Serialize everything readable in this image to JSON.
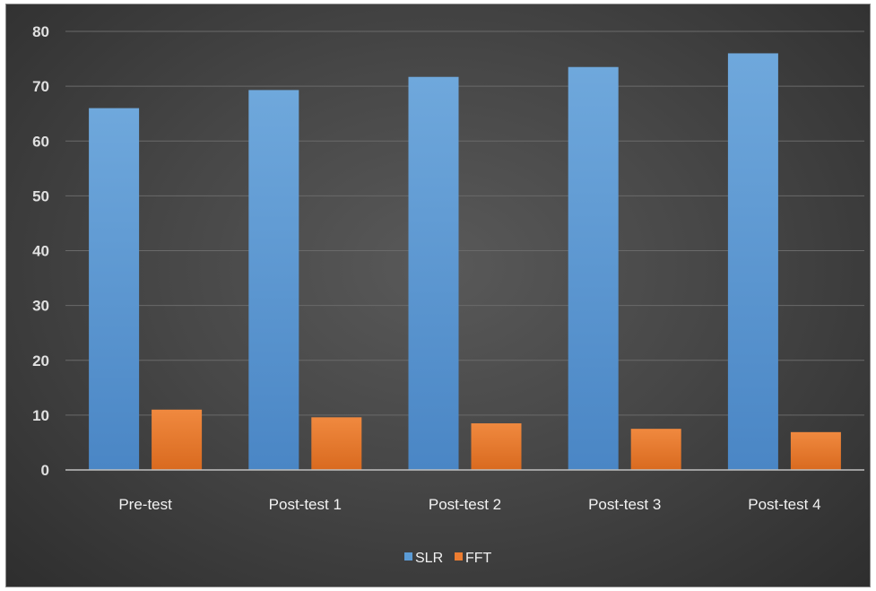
{
  "chart_data": {
    "type": "bar",
    "categories": [
      "Pre-test",
      "Post-test 1",
      "Post-test 2",
      "Post-test 3",
      "Post-test 4"
    ],
    "series": [
      {
        "name": "SLR",
        "values": [
          66,
          69.3,
          71.7,
          73.5,
          76
        ],
        "color": "#5b9bd5"
      },
      {
        "name": "FFT",
        "values": [
          11,
          9.6,
          8.5,
          7.5,
          6.9
        ],
        "color": "#ed7d31"
      }
    ],
    "ylim": [
      0,
      80
    ],
    "yticks": [
      "0",
      "10",
      "20",
      "30",
      "40",
      "50",
      "60",
      "70",
      "80"
    ],
    "grid": true,
    "legend_position": "bottom",
    "background": "#474747"
  }
}
